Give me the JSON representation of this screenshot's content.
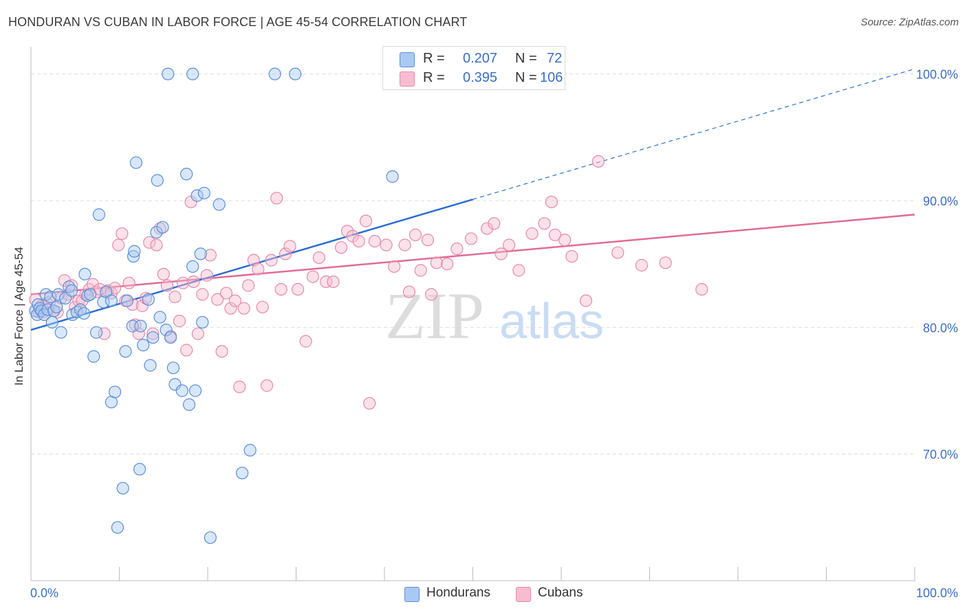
{
  "header": {
    "title": "HONDURAN VS CUBAN IN LABOR FORCE | AGE 45-54 CORRELATION CHART",
    "source": "Source: ZipAtlas.com"
  },
  "watermark": {
    "zip": "ZIP",
    "atlas": "atlas"
  },
  "legend_top": {
    "rows": [
      {
        "r_label": "R =",
        "r_value": "0.207",
        "n_label": "N =",
        "n_value": "72"
      },
      {
        "r_label": "R =",
        "r_value": "0.395",
        "n_label": "N =",
        "n_value": "106"
      }
    ]
  },
  "bottom_legend": {
    "hondurans": "Hondurans",
    "cubans": "Cubans"
  },
  "colors": {
    "honduran_fill": "#a9c9f2",
    "honduran_stroke": "#5b8fd6",
    "honduran_line": "#2a6fd1",
    "cuban_fill": "#f6bcd0",
    "cuban_stroke": "#e58aaa",
    "cuban_line": "#e06b96",
    "tick_label": "#3b6fc4",
    "grid": "#dddddd"
  },
  "chart_data": {
    "type": "scatter",
    "title": "HONDURAN VS CUBAN IN LABOR FORCE | AGE 45-54 CORRELATION CHART",
    "xlabel": "",
    "ylabel": "In Labor Force | Age 45-54",
    "xlim": [
      0,
      100
    ],
    "ylim": [
      60,
      101.5
    ],
    "x_tick_labels": [
      "0.0%",
      "100.0%"
    ],
    "y_ticks": [
      70,
      80,
      90,
      100
    ],
    "y_tick_labels": [
      "70.0%",
      "80.0%",
      "90.0%",
      "100.0%"
    ],
    "grid": true,
    "legend_position": "top-center",
    "series": [
      {
        "name": "Hondurans",
        "r": 0.207,
        "n": 72,
        "trend": {
          "x0": 0,
          "y0": 79.8,
          "x1": 50,
          "y1": 90.1,
          "dashed_to": {
            "x": 100,
            "y": 100.4
          }
        },
        "points": [
          [
            0.5,
            81.3
          ],
          [
            0.8,
            81.8
          ],
          [
            0.7,
            81
          ],
          [
            1,
            81.5
          ],
          [
            1.2,
            81.3
          ],
          [
            1.5,
            81
          ],
          [
            1.7,
            82.6
          ],
          [
            1.9,
            81.4
          ],
          [
            2.2,
            82.4
          ],
          [
            2.4,
            80.4
          ],
          [
            2.6,
            81.3
          ],
          [
            3.1,
            82.6
          ],
          [
            3.4,
            79.6
          ],
          [
            3.9,
            82.3
          ],
          [
            4.3,
            83.2
          ],
          [
            4.6,
            82.9
          ],
          [
            4.7,
            81
          ],
          [
            5.2,
            81.2
          ],
          [
            5.6,
            81.4
          ],
          [
            6.1,
            84.2
          ],
          [
            6.4,
            82.5
          ],
          [
            6.7,
            82.6
          ],
          [
            7.1,
            77.7
          ],
          [
            7.4,
            79.6
          ],
          [
            7.7,
            88.9
          ],
          [
            8.2,
            82
          ],
          [
            8.5,
            82.8
          ],
          [
            9.1,
            82.1
          ],
          [
            9.1,
            74.1
          ],
          [
            9.5,
            74.9
          ],
          [
            9.8,
            64.2
          ],
          [
            10.4,
            67.3
          ],
          [
            10.7,
            78.1
          ],
          [
            10.9,
            82.1
          ],
          [
            11.5,
            80.1
          ],
          [
            11.6,
            85.6
          ],
          [
            11.7,
            86
          ],
          [
            11.9,
            93
          ],
          [
            12.3,
            68.8
          ],
          [
            12.4,
            80.1
          ],
          [
            12.7,
            78.6
          ],
          [
            13.3,
            82.2
          ],
          [
            13.5,
            77
          ],
          [
            13.8,
            79.2
          ],
          [
            14.2,
            87.5
          ],
          [
            14.3,
            91.6
          ],
          [
            14.6,
            80.8
          ],
          [
            14.9,
            87.9
          ],
          [
            15.3,
            79.8
          ],
          [
            15.5,
            100
          ],
          [
            15.8,
            79.2
          ],
          [
            16.1,
            76.8
          ],
          [
            16.3,
            75.5
          ],
          [
            17.1,
            75
          ],
          [
            17.6,
            92.1
          ],
          [
            17.9,
            73.9
          ],
          [
            18.3,
            84.8
          ],
          [
            18.6,
            75
          ],
          [
            18.8,
            90.4
          ],
          [
            19.2,
            85.8
          ],
          [
            19.4,
            80.4
          ],
          [
            19.6,
            90.6
          ],
          [
            20.3,
            63.4
          ],
          [
            21.3,
            89.7
          ],
          [
            23.9,
            68.5
          ],
          [
            24.8,
            70.3
          ],
          [
            18.3,
            100
          ],
          [
            27.6,
            100
          ],
          [
            29.9,
            100
          ],
          [
            40.9,
            91.9
          ],
          [
            2.9,
            81.6
          ],
          [
            6,
            81.1
          ]
        ]
      },
      {
        "name": "Cubans",
        "r": 0.395,
        "n": 106,
        "trend": {
          "x0": 0,
          "y0": 82.6,
          "x1": 100,
          "y1": 88.9
        },
        "points": [
          [
            0.5,
            82.2
          ],
          [
            0.9,
            81.2
          ],
          [
            1.2,
            81.7
          ],
          [
            1.4,
            81.2
          ],
          [
            1.8,
            81.9
          ],
          [
            2.1,
            82
          ],
          [
            2.6,
            81.3
          ],
          [
            3,
            81.2
          ],
          [
            3.4,
            82.3
          ],
          [
            3.8,
            83.7
          ],
          [
            4.2,
            82.6
          ],
          [
            4.6,
            83.3
          ],
          [
            5,
            81.6
          ],
          [
            5.4,
            82.1
          ],
          [
            5.8,
            82.1
          ],
          [
            6.2,
            82.6
          ],
          [
            6.6,
            83
          ],
          [
            7,
            83.4
          ],
          [
            7.4,
            82.8
          ],
          [
            7.8,
            83
          ],
          [
            8.3,
            79.5
          ],
          [
            8.7,
            82.9
          ],
          [
            9.1,
            82.7
          ],
          [
            9.5,
            83.1
          ],
          [
            9.9,
            86.5
          ],
          [
            10.3,
            87.4
          ],
          [
            10.7,
            82.1
          ],
          [
            11.1,
            83.5
          ],
          [
            11.5,
            81.8
          ],
          [
            11.8,
            80.2
          ],
          [
            12.2,
            79.5
          ],
          [
            12.6,
            81.7
          ],
          [
            13,
            82.3
          ],
          [
            13.4,
            86.7
          ],
          [
            13.8,
            79.5
          ],
          [
            14.2,
            86.5
          ],
          [
            14.6,
            87.8
          ],
          [
            15,
            84.2
          ],
          [
            15.4,
            83.3
          ],
          [
            15.8,
            79.3
          ],
          [
            16.3,
            82.4
          ],
          [
            16.8,
            80.5
          ],
          [
            17.2,
            83.5
          ],
          [
            17.6,
            78.2
          ],
          [
            18.1,
            89.9
          ],
          [
            18.4,
            83.6
          ],
          [
            18.9,
            79.5
          ],
          [
            19.4,
            82.6
          ],
          [
            19.9,
            84.1
          ],
          [
            20.3,
            85.7
          ],
          [
            21.1,
            82.2
          ],
          [
            21.6,
            78.1
          ],
          [
            22.1,
            82.7
          ],
          [
            22.6,
            81.5
          ],
          [
            23.1,
            82.1
          ],
          [
            23.6,
            75.3
          ],
          [
            24.1,
            81.5
          ],
          [
            24.6,
            83.3
          ],
          [
            25.2,
            85.3
          ],
          [
            25.7,
            84.6
          ],
          [
            26.2,
            81.6
          ],
          [
            26.7,
            75.4
          ],
          [
            27.2,
            85.3
          ],
          [
            27.8,
            90.2
          ],
          [
            28.3,
            83
          ],
          [
            28.8,
            85.8
          ],
          [
            29.3,
            86.4
          ],
          [
            30.2,
            83
          ],
          [
            31.1,
            78.9
          ],
          [
            31.9,
            84
          ],
          [
            32.6,
            85.5
          ],
          [
            33.4,
            83.6
          ],
          [
            34.2,
            83.6
          ],
          [
            35.1,
            86.3
          ],
          [
            35.8,
            87.6
          ],
          [
            36.4,
            87.2
          ],
          [
            37.1,
            86.8
          ],
          [
            37.9,
            88.4
          ],
          [
            38.3,
            74
          ],
          [
            38.9,
            86.8
          ],
          [
            40.2,
            86.5
          ],
          [
            41.1,
            84.8
          ],
          [
            42.3,
            86.5
          ],
          [
            42.8,
            82.8
          ],
          [
            43.5,
            87.3
          ],
          [
            44.1,
            84.5
          ],
          [
            44.9,
            86.9
          ],
          [
            45.3,
            82.6
          ],
          [
            45.9,
            85.1
          ],
          [
            47.1,
            85
          ],
          [
            48.2,
            86.2
          ],
          [
            49.8,
            87
          ],
          [
            51.6,
            87.8
          ],
          [
            52.4,
            88.2
          ],
          [
            53.2,
            85.8
          ],
          [
            54.1,
            86.5
          ],
          [
            55.2,
            84.5
          ],
          [
            56.7,
            87.4
          ],
          [
            58.1,
            88.2
          ],
          [
            58.9,
            89.9
          ],
          [
            59.3,
            87.3
          ],
          [
            60.4,
            86.9
          ],
          [
            61.2,
            85.6
          ],
          [
            62.8,
            82.1
          ],
          [
            64.2,
            93.1
          ],
          [
            66.4,
            85.9
          ],
          [
            69.1,
            84.9
          ],
          [
            71.8,
            85.1
          ],
          [
            75.9,
            83
          ]
        ]
      }
    ]
  }
}
